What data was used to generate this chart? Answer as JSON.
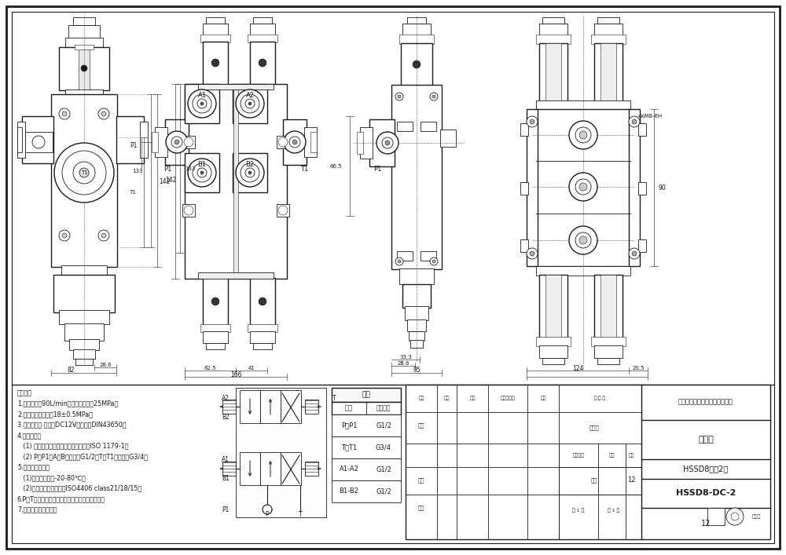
{
  "bg_color": "#ffffff",
  "line_color": "#1a1a1a",
  "fill_white": "#ffffff",
  "fill_light": "#f0f0ee",
  "tech_notes": [
    "技术要求",
    "1.额定流量：90L/min，最高使用压力25MPa。",
    "2.安全阀设定压力：18±0.5MPa。",
    "3.电磁铁参数 电压：DC12V，接口：DIN43650。",
    "4.进口参数：",
    "   (1) 所有油口均为平面密封，符合标准ISO 1179-1。",
    "   (2) P、P1、A、B口螺纹：G1/2；T、T1口螺纹：G3/4。",
    "5.工作条件要求：",
    "   (1)液压油油温：-20-80℃。",
    "   (2)液压油洁净度不低于ISO4406 class21/18/15。",
    "6.P、T口用金属模密封，其他进口用塑料模密封。",
    "7.阆体表面硬化处理。"
  ],
  "port_table_rows": [
    [
      "P、P1",
      "G1/2"
    ],
    [
      "T、T1",
      "G3/4"
    ],
    [
      "A1-A2",
      "G1/2"
    ],
    [
      "B1-B2",
      "G1/2"
    ]
  ],
  "title_block": {
    "company": "青州博信华盛液压科技有限公司",
    "drawing": "外形图",
    "name": "HSSD8电捣2联",
    "part_no": "HSSD8-DC-2",
    "scale": "12"
  }
}
